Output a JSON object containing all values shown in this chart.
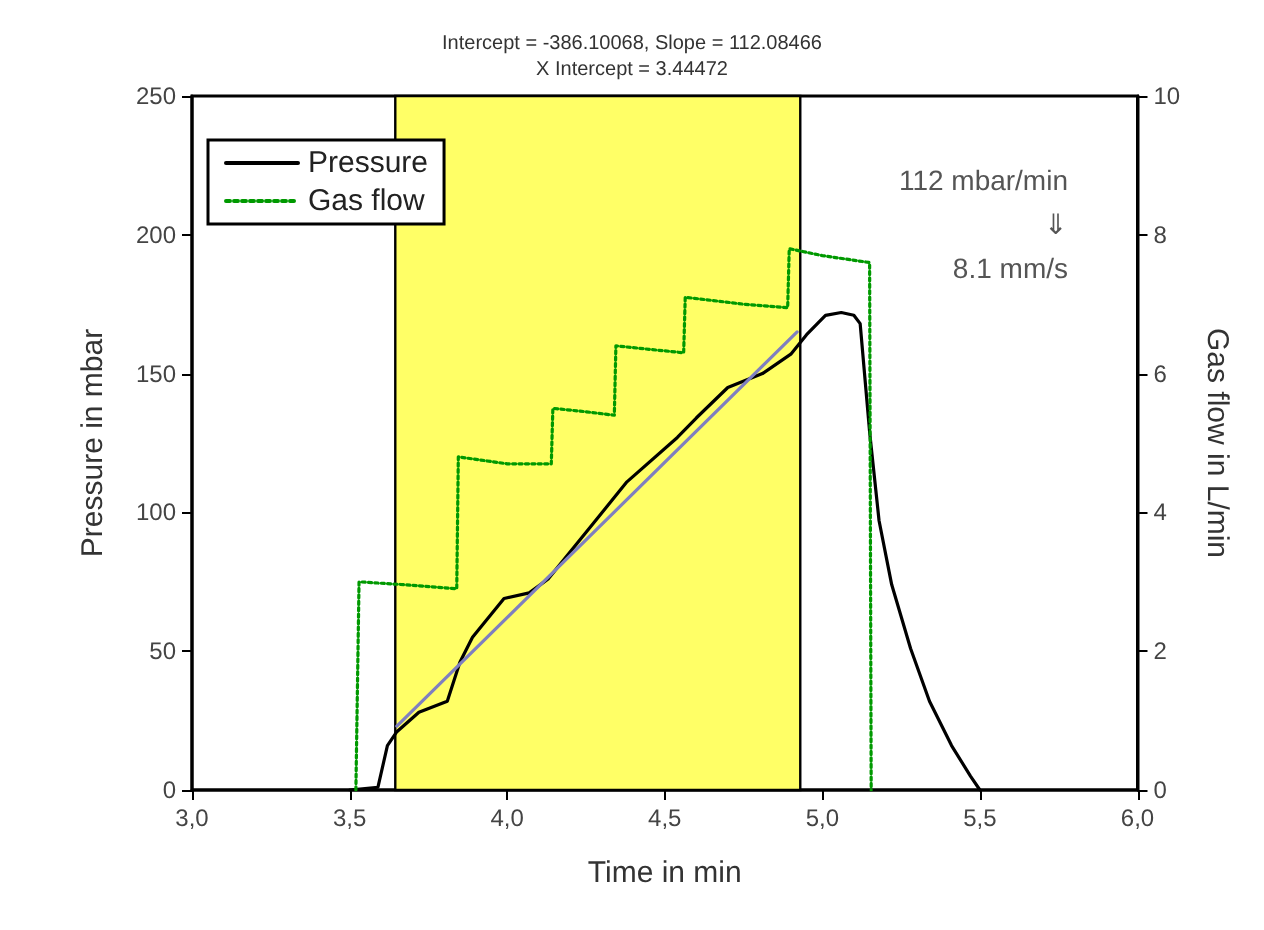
{
  "chart_data": {
    "type": "line",
    "title": "Intercept = -386.10068, Slope = 112.08466",
    "subtitle": "X Intercept = 3.44472",
    "xlabel": "Time in min",
    "ylabel": "Pressure in mbar",
    "y2label": "Gas flow in L/min",
    "xlim": [
      3,
      6
    ],
    "xticks": [
      {
        "value": 3,
        "label": "3,0"
      },
      {
        "value": 3.5,
        "label": "3,5"
      },
      {
        "value": 4,
        "label": "4,0"
      },
      {
        "value": 4.5,
        "label": "4,5"
      },
      {
        "value": 5,
        "label": "5,0"
      },
      {
        "value": 5.5,
        "label": "5,5"
      },
      {
        "value": 6,
        "label": "6,0"
      }
    ],
    "ylim": [
      0,
      250
    ],
    "yticks": [
      0,
      50,
      100,
      150,
      200,
      250
    ],
    "y2lim": [
      0,
      10
    ],
    "y2ticks": [
      0,
      2,
      4,
      6,
      8,
      10
    ],
    "grid": false,
    "legend": "top left",
    "marker": "none",
    "bands": [
      {
        "axis": "x",
        "from": 3.645,
        "to": 4.93,
        "color": "#ffff66"
      }
    ],
    "annotations": [
      "112 mbar/min",
      "⇓",
      "8.1 mm/s"
    ],
    "series": [
      {
        "name": "Pressure",
        "color": "#000000",
        "line_style": "solid",
        "x": [
          3.5,
          3.59,
          3.62,
          3.65,
          3.72,
          3.81,
          3.85,
          3.89,
          3.99,
          4.07,
          4.13,
          4.28,
          4.38,
          4.54,
          4.6,
          4.7,
          4.81,
          4.9,
          4.95,
          5.01,
          5.06,
          5.1,
          5.12,
          5.15,
          5.18,
          5.22,
          5.28,
          5.34,
          5.41,
          5.47,
          5.5
        ],
        "values": [
          0,
          1,
          16,
          21,
          28,
          32,
          46,
          55,
          69,
          71,
          76,
          97,
          111,
          127,
          134,
          145,
          150,
          157,
          164,
          171,
          172,
          171,
          168,
          129,
          97,
          74,
          51,
          32,
          16,
          5,
          0
        ]
      },
      {
        "name": "Gas flow",
        "color": "#009900",
        "line_style": "dotted",
        "axis": "y2",
        "x": [
          3.52,
          3.53,
          3.7,
          3.84,
          3.845,
          4.0,
          4.14,
          4.145,
          4.25,
          4.34,
          4.345,
          4.45,
          4.56,
          4.565,
          4.75,
          4.89,
          4.895,
          5.0,
          5.15,
          5.155
        ],
        "values": [
          0,
          3.0,
          2.95,
          2.9,
          4.8,
          4.7,
          4.7,
          5.5,
          5.45,
          5.4,
          6.4,
          6.35,
          6.3,
          7.1,
          7.0,
          6.95,
          7.8,
          7.7,
          7.6,
          0
        ]
      },
      {
        "color": "#7f7fc0",
        "line_style": "solid",
        "x": [
          3.65,
          4.92
        ],
        "values": [
          23,
          165
        ]
      }
    ]
  }
}
